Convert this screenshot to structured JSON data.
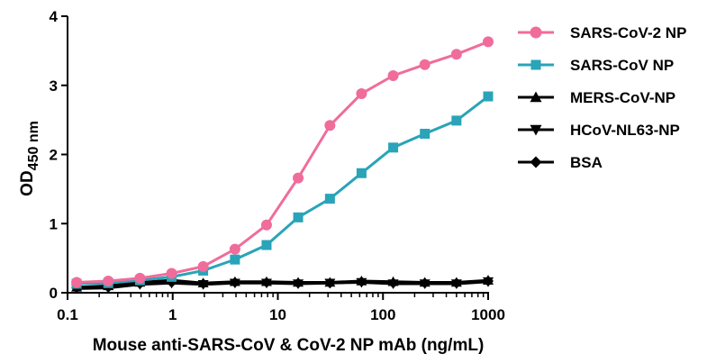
{
  "chart_data": {
    "type": "line",
    "xscale": "log",
    "xlim": [
      0.1,
      1000
    ],
    "ylim": [
      0,
      4
    ],
    "xticks": [
      0.1,
      1,
      10,
      100,
      1000
    ],
    "xtick_labels": [
      "0.1",
      "1",
      "10",
      "100",
      "1000"
    ],
    "yticks": [
      0,
      1,
      2,
      3,
      4
    ],
    "ytick_labels": [
      "0",
      "1",
      "2",
      "3",
      "4"
    ],
    "xlabel": "Mouse anti-SARS-CoV & CoV-2 NP mAb (ng/mL)",
    "ylabel_main": "OD",
    "ylabel_sub": "450 nm",
    "legend_position": "right",
    "x": [
      0.122,
      0.244,
      0.488,
      0.977,
      1.95,
      3.91,
      7.81,
      15.6,
      31.3,
      62.5,
      125,
      250,
      500,
      1000
    ],
    "series": [
      {
        "name": "SARS-CoV-2 NP",
        "color": "#f06c9b",
        "marker": "circle",
        "values": [
          0.15,
          0.17,
          0.21,
          0.28,
          0.38,
          0.63,
          0.98,
          1.66,
          2.42,
          2.88,
          3.14,
          3.3,
          3.45,
          3.63
        ]
      },
      {
        "name": "SARS-CoV NP",
        "color": "#29a4b8",
        "marker": "square",
        "values": [
          0.13,
          0.14,
          0.18,
          0.23,
          0.32,
          0.48,
          0.69,
          1.09,
          1.36,
          1.73,
          2.1,
          2.3,
          2.49,
          2.84
        ]
      },
      {
        "name": "MERS-CoV-NP",
        "color": "#000000",
        "marker": "triangle-up",
        "values": [
          0.08,
          0.1,
          0.15,
          0.18,
          0.14,
          0.16,
          0.16,
          0.15,
          0.15,
          0.17,
          0.16,
          0.15,
          0.15,
          0.18
        ]
      },
      {
        "name": "HCoV-NL63-NP",
        "color": "#000000",
        "marker": "triangle-down",
        "values": [
          0.06,
          0.07,
          0.12,
          0.14,
          0.12,
          0.14,
          0.14,
          0.13,
          0.14,
          0.15,
          0.13,
          0.13,
          0.13,
          0.16
        ]
      },
      {
        "name": "BSA",
        "color": "#000000",
        "marker": "diamond",
        "values": [
          0.07,
          0.08,
          0.13,
          0.15,
          0.13,
          0.15,
          0.15,
          0.14,
          0.14,
          0.16,
          0.14,
          0.14,
          0.14,
          0.17
        ]
      }
    ]
  }
}
